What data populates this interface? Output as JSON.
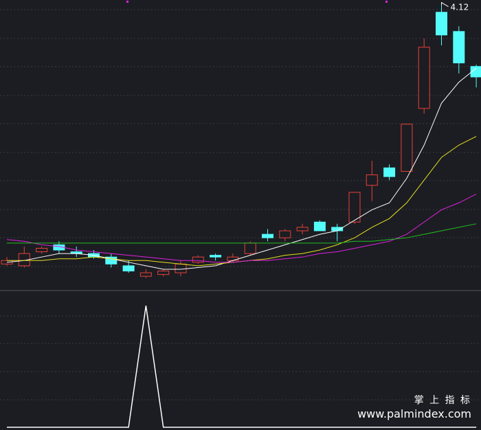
{
  "chart_data": [
    {
      "type": "candlestick",
      "open": [
        2.64,
        2.63,
        2.71,
        2.75,
        2.71,
        2.7,
        2.68,
        2.63,
        2.57,
        2.58,
        2.59,
        2.65,
        2.69,
        2.66,
        2.7,
        2.81,
        2.79,
        2.83,
        2.88,
        2.85,
        2.88,
        3.09,
        3.19,
        3.17,
        3.53,
        4.08,
        3.97,
        3.77
      ],
      "high": [
        2.68,
        2.74,
        2.74,
        2.77,
        2.74,
        2.72,
        2.7,
        2.66,
        2.61,
        2.61,
        2.66,
        2.69,
        2.7,
        2.7,
        2.77,
        2.84,
        2.84,
        2.87,
        2.89,
        2.87,
        3.05,
        3.23,
        3.21,
        3.44,
        3.93,
        4.12,
        4.0,
        3.78
      ],
      "low": [
        2.63,
        2.62,
        2.7,
        2.7,
        2.68,
        2.67,
        2.62,
        2.59,
        2.56,
        2.57,
        2.57,
        2.64,
        2.66,
        2.65,
        2.69,
        2.77,
        2.77,
        2.81,
        2.83,
        2.77,
        2.87,
        3.0,
        3.12,
        3.17,
        3.5,
        3.89,
        3.73,
        3.65
      ],
      "close": [
        2.66,
        2.7,
        2.73,
        2.72,
        2.7,
        2.68,
        2.64,
        2.6,
        2.59,
        2.6,
        2.64,
        2.68,
        2.68,
        2.68,
        2.76,
        2.79,
        2.83,
        2.85,
        2.83,
        2.83,
        3.05,
        3.15,
        3.14,
        3.44,
        3.88,
        3.95,
        3.79,
        3.71
      ],
      "up_color": "#e8403a",
      "down_color": "#54fcfc",
      "series": [
        {
          "color": "#ffffff",
          "values": [
            2.65,
            2.66,
            2.68,
            2.7,
            2.7,
            2.69,
            2.67,
            2.65,
            2.63,
            2.61,
            2.61,
            2.62,
            2.63,
            2.66,
            2.69,
            2.72,
            2.75,
            2.78,
            2.81,
            2.83,
            2.89,
            2.95,
            2.99,
            3.13,
            3.32,
            3.56,
            3.68,
            3.76
          ]
        },
        {
          "color": "#e8e020",
          "values": [
            2.66,
            2.66,
            2.66,
            2.67,
            2.67,
            2.68,
            2.67,
            2.66,
            2.66,
            2.65,
            2.64,
            2.63,
            2.64,
            2.65,
            2.66,
            2.67,
            2.69,
            2.7,
            2.72,
            2.75,
            2.79,
            2.85,
            2.9,
            2.99,
            3.12,
            3.25,
            3.32,
            3.37
          ]
        },
        {
          "color": "#e020e0",
          "values": [
            2.78,
            2.77,
            2.75,
            2.74,
            2.72,
            2.71,
            2.7,
            2.69,
            2.68,
            2.67,
            2.66,
            2.66,
            2.65,
            2.65,
            2.66,
            2.66,
            2.67,
            2.68,
            2.7,
            2.71,
            2.73,
            2.75,
            2.77,
            2.81,
            2.88,
            2.95,
            2.99,
            3.04
          ]
        },
        {
          "color": "#20c020",
          "values": [
            2.76,
            2.76,
            2.76,
            2.76,
            2.76,
            2.76,
            2.76,
            2.76,
            2.76,
            2.76,
            2.76,
            2.76,
            2.76,
            2.76,
            2.76,
            2.76,
            2.76,
            2.76,
            2.76,
            2.76,
            2.77,
            2.77,
            2.78,
            2.79,
            2.81,
            2.83,
            2.85,
            2.87
          ]
        }
      ],
      "ylim": [
        2.5,
        4.15
      ]
    },
    {
      "type": "line",
      "color": "#ffffff",
      "values": [
        0,
        0,
        0,
        0,
        0,
        0,
        0,
        0,
        1,
        0,
        0,
        0,
        0,
        0,
        0,
        0,
        0,
        0,
        0,
        0,
        0,
        0,
        0,
        0,
        0,
        0,
        0,
        0
      ],
      "ylim": [
        0,
        1
      ]
    }
  ],
  "watermark": {
    "title": "掌 上 指 标",
    "url": "www.palmindex.com"
  }
}
